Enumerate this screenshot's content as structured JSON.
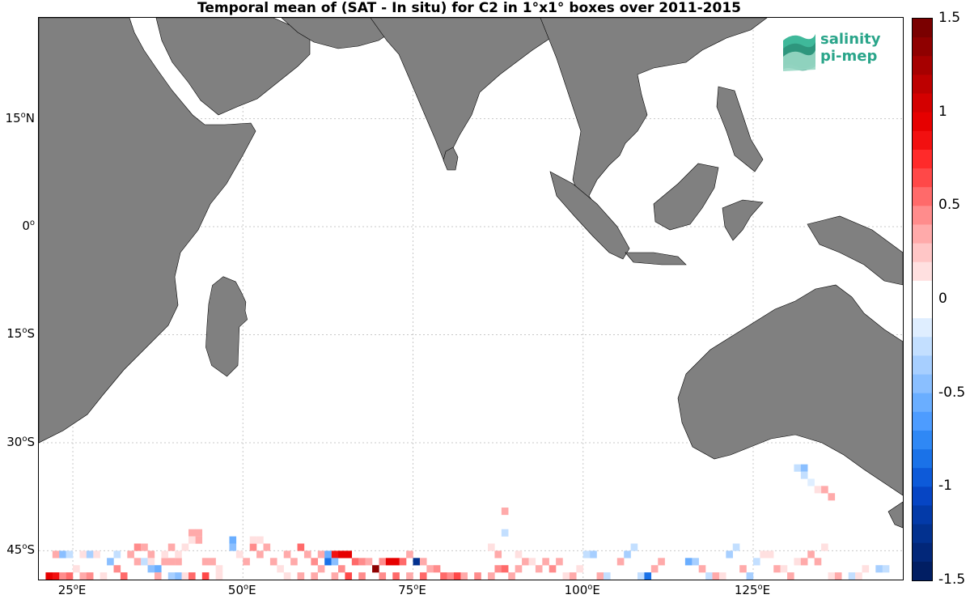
{
  "chart_data": {
    "type": "heatmap",
    "title": "Temporal mean of (SAT - In situ) for C2 in 1°x1° boxes over 2011-2015",
    "x_ticks": [
      {
        "value": 25,
        "label": "25",
        "hemi": "E"
      },
      {
        "value": 50,
        "label": "50",
        "hemi": "E"
      },
      {
        "value": 75,
        "label": "75",
        "hemi": "E"
      },
      {
        "value": 100,
        "label": "100",
        "hemi": "E"
      },
      {
        "value": 125,
        "label": "125",
        "hemi": "E"
      }
    ],
    "y_ticks": [
      {
        "value": 15,
        "label": "15",
        "hemi": "N"
      },
      {
        "value": 0,
        "label": "0",
        "hemi": ""
      },
      {
        "value": -15,
        "label": "15",
        "hemi": "S"
      },
      {
        "value": -30,
        "label": "30",
        "hemi": "S"
      },
      {
        "value": -45,
        "label": "45",
        "hemi": "S"
      }
    ],
    "lon_range": [
      20,
      147
    ],
    "lat_range": [
      -49,
      29
    ],
    "grid": true,
    "colorbar": {
      "range": [
        -1.5,
        1.5
      ],
      "ticks": [
        "1.5",
        "1",
        "0.5",
        "0",
        "-0.5",
        "-1",
        "-1.5"
      ],
      "tick_values": [
        1.5,
        1,
        0.5,
        0,
        -0.5,
        -1,
        -1.5
      ],
      "colors": [
        "#7a0000",
        "#8f0000",
        "#a60000",
        "#bd0000",
        "#d40000",
        "#e60000",
        "#f21010",
        "#ff2a2a",
        "#ff4848",
        "#ff6a6a",
        "#ff8c8c",
        "#ffaaaa",
        "#ffc6c6",
        "#ffe0e0",
        "#ffffff",
        "#ffffff",
        "#dfeeff",
        "#c3dfff",
        "#a7cfff",
        "#8abfff",
        "#6aaeff",
        "#4d9cff",
        "#2f88f5",
        "#1a72e8",
        "#0d5ad9",
        "#0645c4",
        "#033aa8",
        "#02318f",
        "#022779",
        "#011e63"
      ]
    },
    "cells": [
      [
        22,
        -45.5,
        0.3
      ],
      [
        23,
        -45.5,
        -0.4
      ],
      [
        24,
        -45.5,
        -0.2
      ],
      [
        26,
        -45.5,
        0.2
      ],
      [
        27,
        -45.5,
        -0.3
      ],
      [
        28,
        -45.5,
        0.15
      ],
      [
        21,
        -48.5,
        1.0
      ],
      [
        22,
        -48.5,
        0.8
      ],
      [
        23,
        -48.5,
        0.5
      ],
      [
        24,
        -48.5,
        0.6
      ],
      [
        21,
        -49.5,
        0.4
      ],
      [
        22,
        -49.5,
        0.6
      ],
      [
        23,
        -49.5,
        0.3
      ],
      [
        25,
        -47.5,
        0.2
      ],
      [
        26,
        -48.5,
        0.3
      ],
      [
        27,
        -48.5,
        0.5
      ],
      [
        28,
        -49.5,
        0.4
      ],
      [
        29,
        -48.5,
        0.2
      ],
      [
        30,
        -49.5,
        0.3
      ],
      [
        31,
        -47.5,
        0.5
      ],
      [
        32,
        -48.5,
        0.6
      ],
      [
        33,
        -45.5,
        0.4
      ],
      [
        34,
        -44.5,
        0.5
      ],
      [
        35,
        -44.5,
        0.4
      ],
      [
        36,
        -45.5,
        0.3
      ],
      [
        34,
        -46.5,
        0.3
      ],
      [
        35,
        -46.5,
        -0.2
      ],
      [
        36,
        -46.5,
        0.2
      ],
      [
        37,
        -47.5,
        -0.5
      ],
      [
        36,
        -47.5,
        -0.4
      ],
      [
        38,
        -46.5,
        0.4
      ],
      [
        39,
        -46.5,
        0.3
      ],
      [
        40,
        -46.5,
        0.4
      ],
      [
        38,
        -45.5,
        0.2
      ],
      [
        39,
        -44.5,
        0.3
      ],
      [
        40,
        -45.5,
        0.2
      ],
      [
        41,
        -44.5,
        0.2
      ],
      [
        42,
        -42.5,
        0.4
      ],
      [
        43,
        -42.5,
        0.3
      ],
      [
        43,
        -43.5,
        0.3
      ],
      [
        42,
        -43.5,
        0.2
      ],
      [
        37,
        -48.5,
        0.3
      ],
      [
        38,
        -49.5,
        0.5
      ],
      [
        39,
        -48.5,
        -0.3
      ],
      [
        40,
        -48.5,
        -0.4
      ],
      [
        41,
        -48.5,
        0.2
      ],
      [
        42,
        -48.5,
        0.6
      ],
      [
        43,
        -49.5,
        0.4
      ],
      [
        44,
        -48.5,
        0.7
      ],
      [
        45,
        -49.5,
        0.3
      ],
      [
        46,
        -48.5,
        0.2
      ],
      [
        47,
        -49.5,
        0.4
      ],
      [
        48,
        -43.5,
        -0.5
      ],
      [
        48,
        -44.5,
        -0.4
      ],
      [
        49,
        -45.5,
        0.2
      ],
      [
        50,
        -46.5,
        0.3
      ],
      [
        51,
        -44.5,
        0.5
      ],
      [
        52,
        -45.5,
        0.4
      ],
      [
        53,
        -44.5,
        0.3
      ],
      [
        51,
        -43.5,
        0.2
      ],
      [
        52,
        -43.5,
        0.15
      ],
      [
        54,
        -46.5,
        0.3
      ],
      [
        55,
        -47.5,
        0.2
      ],
      [
        56,
        -45.5,
        0.3
      ],
      [
        57,
        -46.5,
        0.4
      ],
      [
        58,
        -44.5,
        0.6
      ],
      [
        59,
        -45.5,
        0.4
      ],
      [
        60,
        -46.5,
        0.5
      ],
      [
        61,
        -45.5,
        0.3
      ],
      [
        62,
        -46.5,
        -0.9
      ],
      [
        63,
        -45.5,
        0.8
      ],
      [
        64,
        -45.5,
        1.0
      ],
      [
        65,
        -45.5,
        0.9
      ],
      [
        62,
        -45.5,
        -0.5
      ],
      [
        63,
        -46.5,
        -0.4
      ],
      [
        66,
        -46.5,
        0.6
      ],
      [
        67,
        -46.5,
        0.5
      ],
      [
        68,
        -46.5,
        0.4
      ],
      [
        69,
        -47.5,
        1.4
      ],
      [
        70,
        -46.5,
        0.5
      ],
      [
        71,
        -46.5,
        1.0
      ],
      [
        72,
        -46.5,
        1.0
      ],
      [
        73,
        -46.5,
        0.6
      ],
      [
        74,
        -45.5,
        0.3
      ],
      [
        75,
        -46.5,
        -1.3
      ],
      [
        76,
        -46.5,
        0.4
      ],
      [
        77,
        -47.5,
        0.3
      ],
      [
        78,
        -47.5,
        0.5
      ],
      [
        79,
        -48.5,
        0.6
      ],
      [
        80,
        -48.5,
        0.5
      ],
      [
        81,
        -48.5,
        0.7
      ],
      [
        82,
        -48.5,
        0.4
      ],
      [
        83,
        -49.5,
        0.6
      ],
      [
        84,
        -48.5,
        0.5
      ],
      [
        85,
        -49.5,
        0.3
      ],
      [
        86,
        -48.5,
        0.4
      ],
      [
        87,
        -47.5,
        0.5
      ],
      [
        88,
        -47.5,
        0.6
      ],
      [
        89,
        -48.5,
        0.4
      ],
      [
        90,
        -47.5,
        0.3
      ],
      [
        91,
        -46.5,
        0.4
      ],
      [
        92,
        -46.5,
        0.2
      ],
      [
        93,
        -47.5,
        0.3
      ],
      [
        94,
        -46.5,
        0.4
      ],
      [
        95,
        -47.5,
        0.5
      ],
      [
        96,
        -46.5,
        0.3
      ],
      [
        97,
        -48.5,
        0.2
      ],
      [
        98,
        -48.5,
        0.3
      ],
      [
        99,
        -47.5,
        0.2
      ],
      [
        100,
        -45.5,
        -0.2
      ],
      [
        101,
        -45.5,
        -0.3
      ],
      [
        102,
        -48.5,
        0.3
      ],
      [
        103,
        -48.5,
        -0.2
      ],
      [
        104,
        -49.5,
        0.2
      ],
      [
        105,
        -46.5,
        0.3
      ],
      [
        106,
        -45.5,
        -0.3
      ],
      [
        107,
        -44.5,
        -0.2
      ],
      [
        108,
        -48.5,
        -0.2
      ],
      [
        109,
        -48.5,
        -0.9
      ],
      [
        110,
        -47.5,
        0.3
      ],
      [
        111,
        -46.5,
        0.4
      ],
      [
        112,
        -49.5,
        -1.5
      ],
      [
        113,
        -49.5,
        -0.4
      ],
      [
        114,
        -49.5,
        -0.3
      ],
      [
        115,
        -46.5,
        -0.5
      ],
      [
        116,
        -46.5,
        -0.3
      ],
      [
        117,
        -47.5,
        0.4
      ],
      [
        118,
        -48.5,
        -0.2
      ],
      [
        119,
        -48.5,
        0.3
      ],
      [
        120,
        -48.5,
        0.2
      ],
      [
        121,
        -45.5,
        -0.3
      ],
      [
        122,
        -44.5,
        -0.2
      ],
      [
        123,
        -47.5,
        0.3
      ],
      [
        124,
        -48.5,
        -0.3
      ],
      [
        125,
        -46.5,
        -0.2
      ],
      [
        126,
        -45.5,
        0.2
      ],
      [
        127,
        -45.5,
        0.2
      ],
      [
        128,
        -47.5,
        0.3
      ],
      [
        129,
        -47.5,
        0.2
      ],
      [
        88,
        -39.5,
        0.3
      ],
      [
        88,
        -42.5,
        -0.2
      ],
      [
        86,
        -44.5,
        0.15
      ],
      [
        87,
        -45.5,
        0.3
      ],
      [
        90,
        -45.5,
        0.2
      ],
      [
        131,
        -46.5,
        0.15
      ],
      [
        132,
        -46.5,
        0.3
      ],
      [
        133,
        -45.5,
        0.4
      ],
      [
        134,
        -46.5,
        0.3
      ],
      [
        135,
        -44.5,
        0.2
      ],
      [
        136,
        -48.5,
        0.2
      ],
      [
        137,
        -48.5,
        0.3
      ],
      [
        138,
        -49.5,
        0.3
      ],
      [
        139,
        -48.5,
        -0.2
      ],
      [
        140,
        -48.5,
        0.15
      ],
      [
        141,
        -47.5,
        0.2
      ],
      [
        143,
        -47.5,
        -0.3
      ],
      [
        144,
        -47.5,
        -0.2
      ],
      [
        130,
        -48.5,
        0.3
      ],
      [
        131,
        -49.5,
        0.2
      ],
      [
        131,
        -33.5,
        -0.2
      ],
      [
        132,
        -33.5,
        -0.4
      ],
      [
        132,
        -34.5,
        -0.2
      ],
      [
        133,
        -35.5,
        -0.15
      ],
      [
        134,
        -36.5,
        0.2
      ],
      [
        135,
        -36.5,
        0.3
      ],
      [
        136,
        -37.5,
        0.3
      ],
      [
        61,
        -47.5,
        0.4
      ],
      [
        60,
        -48.5,
        0.3
      ],
      [
        59,
        -49.5,
        0.5
      ],
      [
        58,
        -48.5,
        0.4
      ],
      [
        57,
        -49.5,
        0.3
      ],
      [
        56,
        -48.5,
        0.2
      ],
      [
        55,
        -49.5,
        0.3
      ],
      [
        65,
        -48.5,
        0.7
      ],
      [
        66,
        -49.5,
        0.6
      ],
      [
        67,
        -48.5,
        0.5
      ],
      [
        68,
        -49.5,
        0.9
      ],
      [
        70,
        -48.5,
        0.5
      ],
      [
        71,
        -49.5,
        0.4
      ],
      [
        72,
        -48.5,
        0.6
      ],
      [
        73,
        -49.5,
        0.5
      ],
      [
        74,
        -48.5,
        0.4
      ],
      [
        75,
        -49.5,
        0.5
      ],
      [
        76,
        -48.5,
        0.6
      ],
      [
        30,
        -46.5,
        -0.4
      ],
      [
        31,
        -45.5,
        -0.2
      ],
      [
        44,
        -46.5,
        0.3
      ],
      [
        45,
        -46.5,
        0.4
      ],
      [
        46,
        -47.5,
        0.2
      ],
      [
        64,
        -47.5,
        0.5
      ],
      [
        63,
        -48.5,
        0.3
      ]
    ]
  },
  "logo": {
    "line1": "salinity",
    "line2": "pi-mep"
  }
}
